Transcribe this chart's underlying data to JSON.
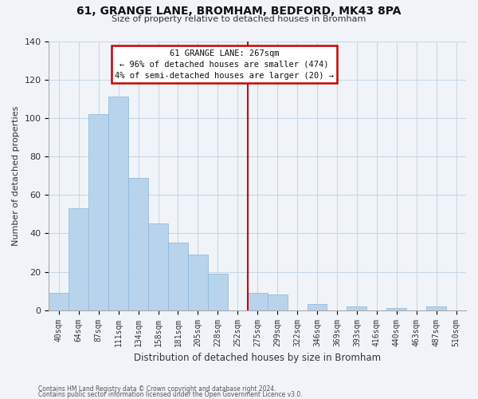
{
  "title": "61, GRANGE LANE, BROMHAM, BEDFORD, MK43 8PA",
  "subtitle": "Size of property relative to detached houses in Bromham",
  "xlabel": "Distribution of detached houses by size in Bromham",
  "ylabel": "Number of detached properties",
  "footnote1": "Contains HM Land Registry data © Crown copyright and database right 2024.",
  "footnote2": "Contains public sector information licensed under the Open Government Licence v3.0.",
  "bar_labels": [
    "40sqm",
    "64sqm",
    "87sqm",
    "111sqm",
    "134sqm",
    "158sqm",
    "181sqm",
    "205sqm",
    "228sqm",
    "252sqm",
    "275sqm",
    "299sqm",
    "322sqm",
    "346sqm",
    "369sqm",
    "393sqm",
    "416sqm",
    "440sqm",
    "463sqm",
    "487sqm",
    "510sqm"
  ],
  "bar_values": [
    9,
    53,
    102,
    111,
    69,
    45,
    35,
    29,
    19,
    0,
    9,
    8,
    0,
    3,
    0,
    2,
    0,
    1,
    0,
    2,
    0
  ],
  "bar_color": "#b8d4ec",
  "bar_edge_color": "#89b4d8",
  "highlight_color": "#cc0000",
  "highlight_bar_index": 10,
  "annotation_title": "61 GRANGE LANE: 267sqm",
  "annotation_line1": "← 96% of detached houses are smaller (474)",
  "annotation_line2": "4% of semi-detached houses are larger (20) →",
  "ylim": [
    0,
    140
  ],
  "yticks": [
    0,
    20,
    40,
    60,
    80,
    100,
    120,
    140
  ],
  "background_color": "#f0f4f8",
  "grid_color": "#c8d8e8",
  "bar_width": 1.0
}
